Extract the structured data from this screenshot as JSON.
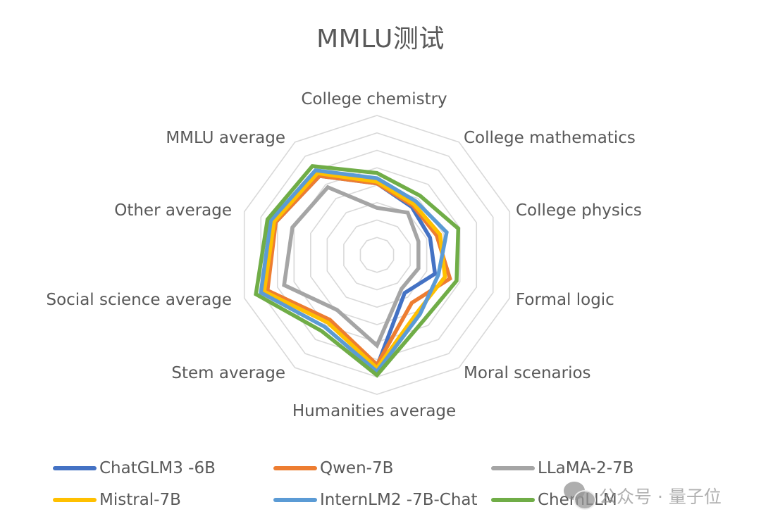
{
  "title": "MMLU测试",
  "chart_data": {
    "type": "radar",
    "title": "MMLU测试",
    "axes": [
      "College chemistry",
      "College mathematics",
      "College physics",
      "Formal logic",
      "Moral scenarios",
      "Humanities average",
      "Stem average",
      "Social science average",
      "Other average",
      "MMLU average"
    ],
    "range": [
      0,
      80
    ],
    "grid_step": 10,
    "grid": true,
    "tick_labels_shown": false,
    "legend_position": "bottom",
    "series": [
      {
        "name": "ChatGLM3 -6B",
        "color": "#4472C4",
        "values": [
          41,
          34,
          32,
          35,
          27,
          64,
          47,
          67,
          61,
          56
        ]
      },
      {
        "name": "Qwen-7B",
        "color": "#ED7D31",
        "values": [
          41,
          35,
          36,
          44,
          34,
          63,
          46,
          66,
          61,
          56
        ]
      },
      {
        "name": "LLaMA-2-7B",
        "color": "#A5A5A5",
        "values": [
          27,
          30,
          25,
          25,
          24,
          52,
          39,
          56,
          51,
          48
        ]
      },
      {
        "name": "Mistral-7B",
        "color": "#FFC000",
        "values": [
          42,
          36,
          38,
          41,
          40,
          65,
          48,
          68,
          62,
          58
        ]
      },
      {
        "name": "InternLM2 -7B-Chat",
        "color": "#5B9BD5",
        "values": [
          44,
          38,
          42,
          37,
          42,
          67,
          51,
          70,
          64,
          60
        ]
      },
      {
        "name": "ChemLLM",
        "color": "#70AD47",
        "values": [
          47,
          42,
          49,
          48,
          46,
          69,
          54,
          73,
          66,
          63
        ]
      }
    ]
  },
  "legend": [
    {
      "label": "ChatGLM3 -6B",
      "color": "#4472C4"
    },
    {
      "label": "Qwen-7B",
      "color": "#ED7D31"
    },
    {
      "label": "LLaMA-2-7B",
      "color": "#A5A5A5"
    },
    {
      "label": "Mistral-7B",
      "color": "#FFC000"
    },
    {
      "label": "InternLM2 -7B-Chat",
      "color": "#5B9BD5"
    },
    {
      "label": "ChemLLM",
      "color": "#70AD47"
    }
  ],
  "watermark": {
    "text": "公众号 · 量子位",
    "icon": "wechat-icon"
  }
}
